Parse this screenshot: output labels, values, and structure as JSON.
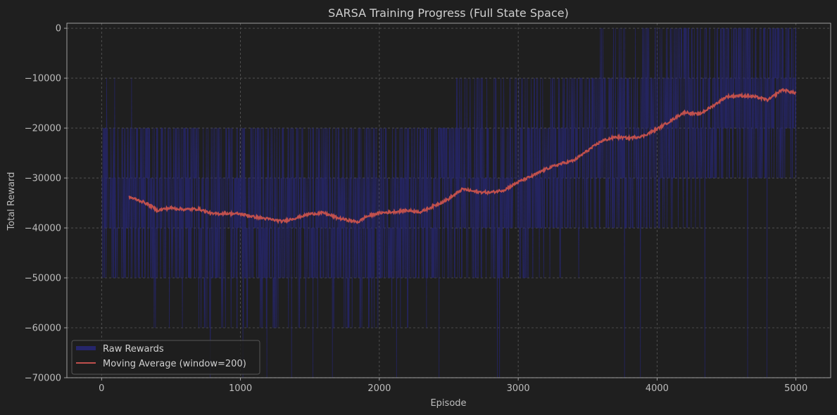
{
  "chart_data": {
    "type": "line",
    "title": "SARSA Training Progress (Full State Space)",
    "xlabel": "Episode",
    "ylabel": "Total Reward",
    "xlim": [
      -250,
      5250
    ],
    "ylim": [
      -70000,
      1000
    ],
    "xticks": [
      0,
      1000,
      2000,
      3000,
      4000,
      5000
    ],
    "yticks": [
      0,
      -10000,
      -20000,
      -30000,
      -40000,
      -50000,
      -60000,
      -70000
    ],
    "grid": true,
    "legend_position": "lower-left",
    "series": [
      {
        "name": "Raw Rewards",
        "color": "#26266b",
        "raw_levels": [
          0,
          -10000,
          -20000,
          -30000,
          -40000,
          -50000,
          -60000,
          -70000
        ],
        "x_range": [
          0,
          5000
        ]
      },
      {
        "name": "Moving Average (window=200)",
        "color": "#c0504d",
        "x": [
          199,
          250,
          300,
          350,
          400,
          450,
          500,
          600,
          700,
          800,
          900,
          1000,
          1100,
          1200,
          1300,
          1400,
          1500,
          1600,
          1700,
          1800,
          1850,
          1900,
          2000,
          2100,
          2200,
          2300,
          2400,
          2500,
          2600,
          2700,
          2800,
          2900,
          3000,
          3100,
          3200,
          3300,
          3400,
          3500,
          3600,
          3700,
          3800,
          3900,
          4000,
          4100,
          4150,
          4200,
          4300,
          4400,
          4500,
          4600,
          4700,
          4800,
          4900,
          5000
        ],
        "y": [
          -33800,
          -34300,
          -34800,
          -35500,
          -36500,
          -36200,
          -36000,
          -36300,
          -36200,
          -37200,
          -37100,
          -37200,
          -37800,
          -38200,
          -38700,
          -38000,
          -37200,
          -37000,
          -38000,
          -38600,
          -38800,
          -37800,
          -37000,
          -36800,
          -36500,
          -36800,
          -35500,
          -34200,
          -32200,
          -32800,
          -32900,
          -32400,
          -30800,
          -29600,
          -28200,
          -27200,
          -26500,
          -24500,
          -22600,
          -21800,
          -22000,
          -21600,
          -20200,
          -18500,
          -17600,
          -16800,
          -17300,
          -15600,
          -13700,
          -13500,
          -13700,
          -14400,
          -12300,
          -13000
        ]
      }
    ]
  }
}
